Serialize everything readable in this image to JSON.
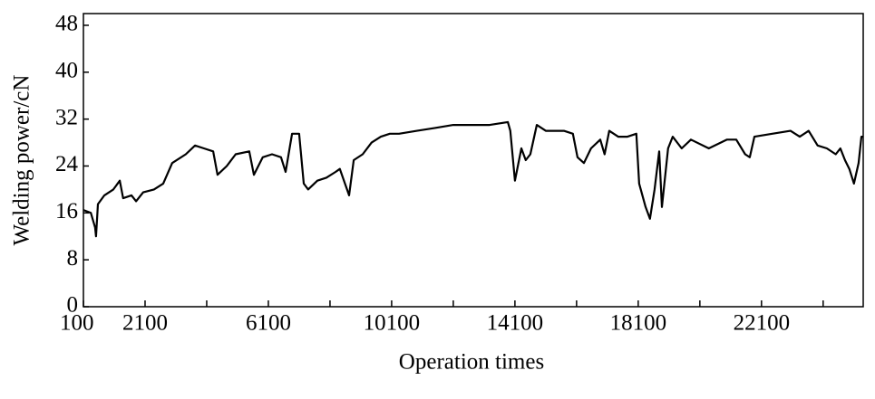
{
  "chart_data": {
    "type": "line",
    "xlabel": "Operation times",
    "ylabel": "Welding power/cN",
    "xlim": [
      100,
      25400
    ],
    "xticks": [
      100,
      2100,
      6100,
      10100,
      14100,
      18100,
      22100
    ],
    "xticks_minor": [
      4100,
      8100,
      12100,
      16100,
      20100,
      24100
    ],
    "ylim": [
      0,
      50
    ],
    "yticks": [
      0,
      8,
      16,
      24,
      32,
      40,
      48
    ],
    "color": "#000000",
    "grid": false,
    "x": [
      100,
      340,
      480,
      510,
      570,
      780,
      1070,
      1280,
      1390,
      1660,
      1810,
      2040,
      2390,
      2690,
      2980,
      3420,
      3720,
      4010,
      4310,
      4450,
      4750,
      5040,
      5480,
      5630,
      5920,
      6220,
      6510,
      6660,
      6870,
      7100,
      7250,
      7390,
      7690,
      7980,
      8280,
      8420,
      8720,
      8870,
      9160,
      9450,
      9750,
      10040,
      10340,
      10920,
      11510,
      12100,
      12690,
      13280,
      13870,
      13950,
      14100,
      14310,
      14450,
      14600,
      14810,
      15100,
      15690,
      15980,
      16130,
      16340,
      16570,
      16870,
      17010,
      17160,
      17450,
      17750,
      18040,
      18130,
      18340,
      18480,
      18630,
      18780,
      18870,
      19070,
      19220,
      19510,
      19810,
      20390,
      20980,
      21280,
      21570,
      21720,
      21870,
      22450,
      23040,
      23340,
      23630,
      23920,
      24220,
      24510,
      24660,
      24810,
      24950,
      25100,
      25250,
      25340,
      25400
    ],
    "values": [
      16.5,
      16,
      13.5,
      12,
      17.5,
      19,
      20,
      21.5,
      18.5,
      19,
      18,
      19.5,
      20,
      21,
      24.5,
      26,
      27.5,
      27,
      26.5,
      22.5,
      24,
      26,
      26.5,
      22.5,
      25.5,
      26,
      25.5,
      23,
      29.5,
      29.5,
      21,
      20,
      21.5,
      22,
      23,
      23.5,
      19,
      25,
      26,
      28,
      29,
      29.5,
      29.5,
      30,
      30.5,
      31,
      31,
      31,
      31.5,
      30,
      21.5,
      27,
      25,
      26,
      31,
      30,
      30,
      29.5,
      25.5,
      24.5,
      27,
      28.5,
      26,
      30,
      29,
      29,
      29.5,
      21,
      17,
      15,
      20,
      26.5,
      17,
      27,
      29,
      27,
      28.5,
      27,
      28.5,
      28.5,
      26,
      25.5,
      29,
      29.5,
      30,
      29,
      30,
      27.5,
      27,
      26,
      27,
      25,
      23.5,
      21,
      24.5,
      29,
      29
    ]
  }
}
